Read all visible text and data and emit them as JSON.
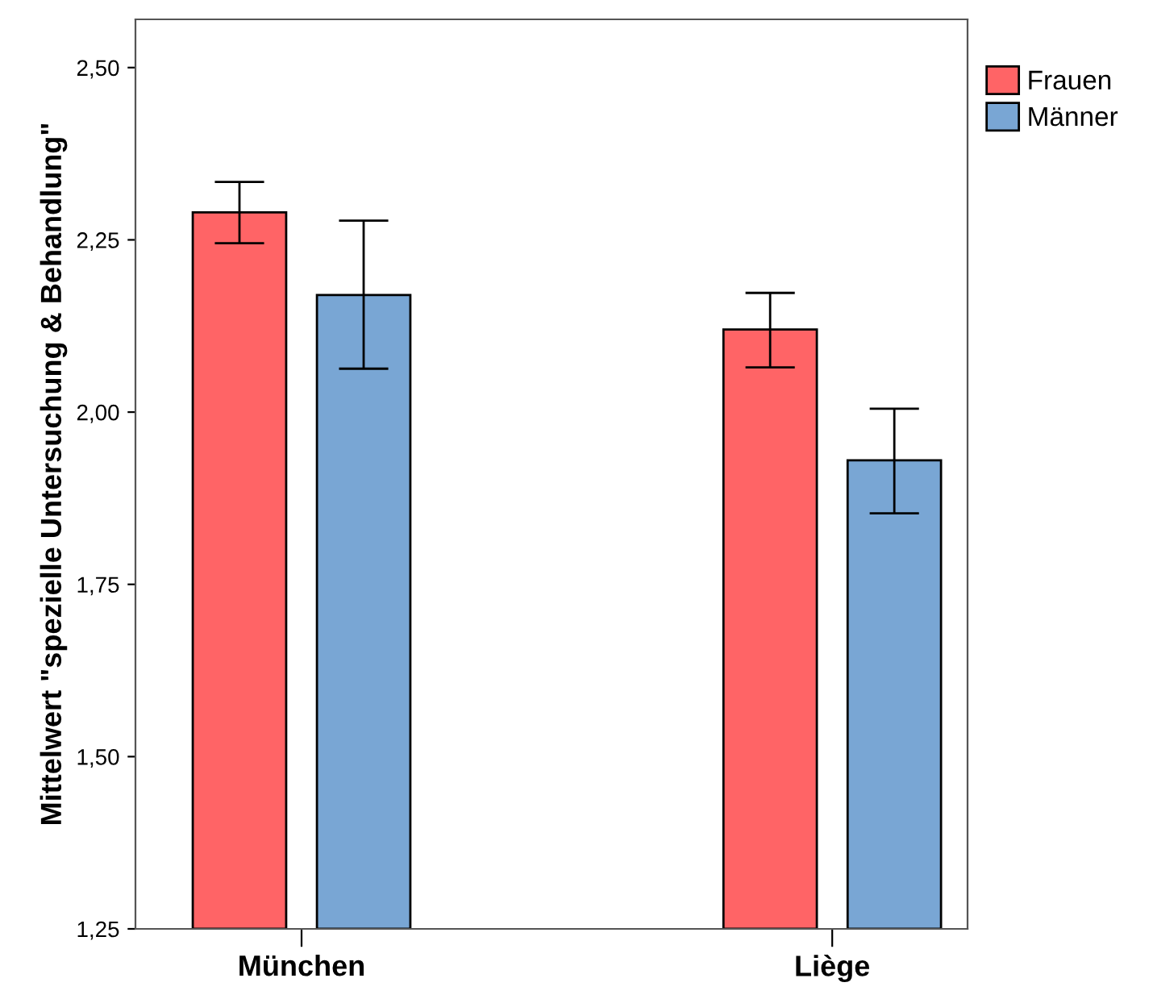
{
  "chart_data": {
    "type": "bar",
    "ylabel": "Mittelwert \"spezielle Untersuchung & Behandlung\"",
    "categories": [
      "München",
      "Liège"
    ],
    "series": [
      {
        "name": "Frauen",
        "color": "#ff6466",
        "values": [
          2.29,
          2.12
        ],
        "errors": [
          [
            2.245,
            2.334
          ],
          [
            2.065,
            2.173
          ]
        ]
      },
      {
        "name": "Männer",
        "color": "#79a6d4",
        "values": [
          2.17,
          1.93
        ],
        "errors": [
          [
            2.063,
            2.278
          ],
          [
            1.853,
            2.005
          ]
        ]
      }
    ],
    "ylim": [
      1.25,
      2.57
    ],
    "yticks": [
      {
        "value": 1.25,
        "label": "1,25"
      },
      {
        "value": 1.5,
        "label": "1,50"
      },
      {
        "value": 1.75,
        "label": "1,75"
      },
      {
        "value": 2.0,
        "label": "2,00"
      },
      {
        "value": 2.25,
        "label": "2,25"
      },
      {
        "value": 2.5,
        "label": "2,50"
      }
    ],
    "grid": false,
    "legend": "top right"
  }
}
